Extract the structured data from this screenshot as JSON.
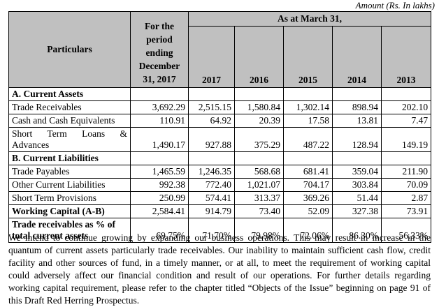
{
  "amount_note": "Amount (Rs. In lakhs)",
  "header": {
    "particulars": "Particulars",
    "period": "For the period ending December 31, 2017",
    "as_at": "As at March 31,",
    "years": [
      "2017",
      "2016",
      "2015",
      "2014",
      "2013"
    ]
  },
  "sections": {
    "current_assets": "A. Current Assets",
    "current_liabilities": "B. Current Liabilities"
  },
  "rows": {
    "trade_receivables": {
      "label": "Trade Receivables",
      "values": [
        "3,692.29",
        "2,515.15",
        "1,580.84",
        "1,302.14",
        "898.94",
        "202.10"
      ]
    },
    "cash": {
      "label": "Cash and Cash Equivalents",
      "values": [
        "110.91",
        "64.92",
        "20.39",
        "17.58",
        "13.81",
        "7.47"
      ]
    },
    "short_term_loans": {
      "label": "Short Term Loans & Advances",
      "values": [
        "1,490.17",
        "927.88",
        "375.29",
        "487.22",
        "128.94",
        "149.19"
      ]
    },
    "trade_payables": {
      "label": "Trade Payables",
      "values": [
        "1,465.59",
        "1,246.35",
        "568.68",
        "681.41",
        "359.04",
        "211.90"
      ]
    },
    "other_current_liabilities": {
      "label": "Other Current Liabilities",
      "values": [
        "992.38",
        "772.40",
        "1,021.07",
        "704.17",
        "303.84",
        "70.09"
      ]
    },
    "short_term_provisions": {
      "label": "Short Term Provisions",
      "values": [
        "250.99",
        "574.41",
        "313.37",
        "369.26",
        "51.44",
        "2.87"
      ]
    },
    "working_capital": {
      "label": "Working Capital (A-B)",
      "values": [
        "2,584.41",
        "914.79",
        "73.40",
        "52.09",
        "327.38",
        "73.91"
      ]
    },
    "receivables_pct": {
      "label": "Trade receivables as % of total current assets",
      "values": [
        "69.75%",
        "71.70%",
        "79.98%",
        "72.06%",
        "86.30%",
        "56.33%"
      ]
    }
  },
  "paragraph": "We intend to continue growing by expanding our business operations. This may result in increase in the quantum of current assets particularly trade receivables. Our inability to maintain sufficient cash flow, credit facility and other sources of fund, in a timely manner, or at all, to meet the requirement of working capital could adversely affect our financial condition and result of our operations. For further details regarding working capital requirement, please refer to the chapter titled “Objects of the Issue” beginning on page 91 of this Draft Red Herring Prospectus."
}
